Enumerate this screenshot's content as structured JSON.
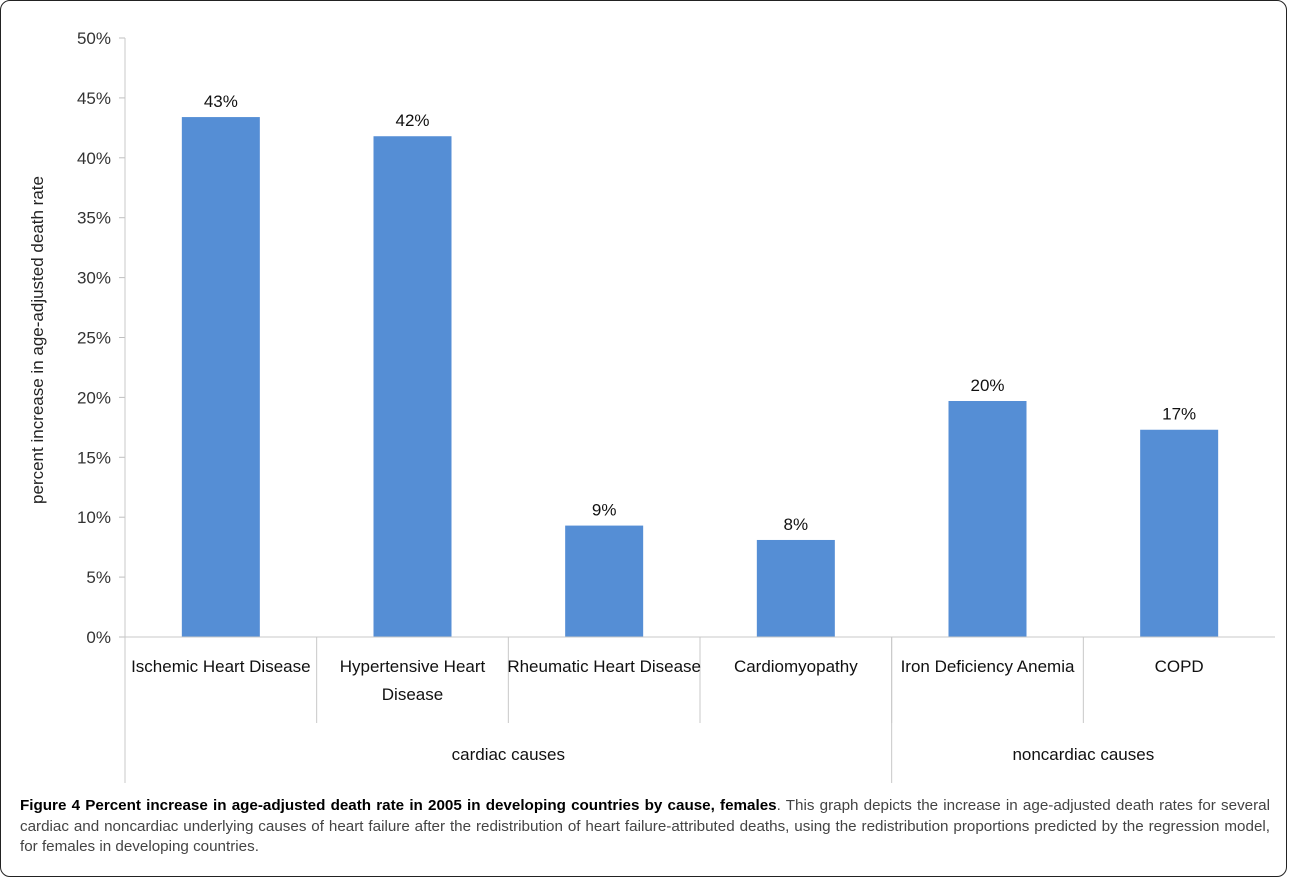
{
  "chart_data": {
    "type": "bar",
    "categories": [
      [
        "Ischemic Heart Disease"
      ],
      [
        "Hypertensive Heart",
        "Disease"
      ],
      [
        "Rheumatic Heart Disease"
      ],
      [
        "Cardiomyopathy"
      ],
      [
        "Iron Deficiency Anemia"
      ],
      [
        "COPD"
      ]
    ],
    "values": [
      43.4,
      41.8,
      9.3,
      8.1,
      19.7,
      17.3
    ],
    "data_labels": [
      "43%",
      "42%",
      "9%",
      "8%",
      "20%",
      "17%"
    ],
    "groups": [
      {
        "label": "cardiac causes",
        "count": 4
      },
      {
        "label": "noncardiac causes",
        "count": 2
      }
    ],
    "ylabel": "percent increase in age-adjusted death rate",
    "ylim": [
      0,
      50
    ],
    "yticks": [
      0,
      5,
      10,
      15,
      20,
      25,
      30,
      35,
      40,
      45,
      50
    ],
    "ytick_labels": [
      "0%",
      "5%",
      "10%",
      "15%",
      "20%",
      "25%",
      "30%",
      "35%",
      "40%",
      "45%",
      "50%"
    ],
    "bar_color": "#558ed5",
    "grid": false
  },
  "caption": {
    "title": "Figure 4 Percent increase in age-adjusted death rate in 2005 in developing countries by cause, females",
    "text": ". This graph depicts the increase in age-adjusted death rates for several cardiac and noncardiac underlying causes of heart failure after the redistribution of heart failure-attributed deaths, using the redistribution proportions predicted by the regression model, for females in developing countries."
  }
}
